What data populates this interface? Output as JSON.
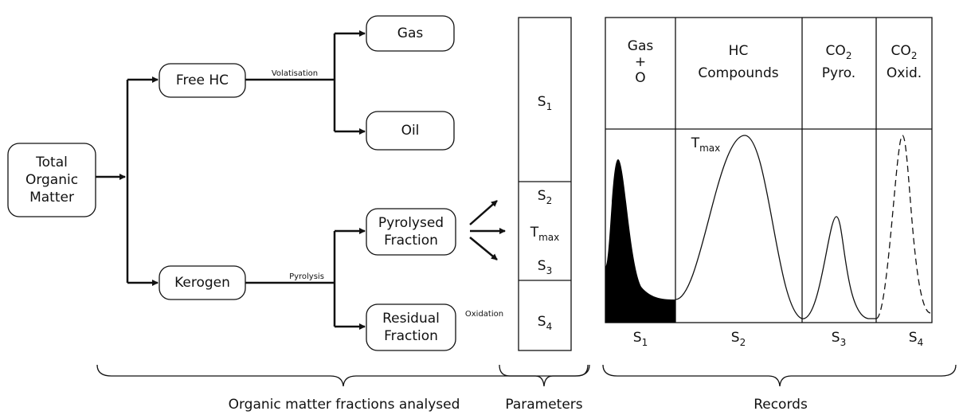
{
  "nodes": [
    {
      "label": [
        "Total",
        "Organic",
        "Matter"
      ]
    },
    {
      "label": [
        "Free HC"
      ]
    },
    {
      "label": [
        "Kerogen"
      ]
    },
    {
      "label": [
        "Gas"
      ]
    },
    {
      "label": [
        "Oil"
      ]
    },
    {
      "label": [
        "Pyrolysed",
        "Fraction"
      ]
    },
    {
      "label": [
        "Residual",
        "Fraction"
      ]
    }
  ],
  "edge_labels": [
    "Volatisation",
    "Pyrolysis",
    "Oxidation"
  ],
  "parameters": [
    {
      "base": "S",
      "sub": "1"
    },
    {
      "base": "S",
      "sub": "2"
    },
    {
      "base": "T",
      "sub": "max"
    },
    {
      "base": "S",
      "sub": "3"
    },
    {
      "base": "S",
      "sub": "4"
    }
  ],
  "records": {
    "columns": [
      {
        "header": [
          {
            "base": "Gas"
          },
          {
            "base": "+"
          },
          {
            "base": "O"
          }
        ],
        "label": {
          "base": "S",
          "sub": "1"
        }
      },
      {
        "header": [
          {
            "base": "HC"
          },
          {
            "base": "Compounds"
          }
        ],
        "label": {
          "base": "S",
          "sub": "2"
        }
      },
      {
        "header": [
          {
            "base": "CO",
            "sub": "2"
          },
          {
            "base": "Pyro."
          }
        ],
        "label": {
          "base": "S",
          "sub": "3"
        }
      },
      {
        "header": [
          {
            "base": "CO",
            "sub": "2"
          },
          {
            "base": "Oxid."
          }
        ],
        "label": {
          "base": "S",
          "sub": "4"
        }
      }
    ],
    "peak_label": {
      "base": "T",
      "sub": "max"
    }
  },
  "sections": [
    "Organic matter fractions analysed",
    "Parameters",
    "Records"
  ]
}
